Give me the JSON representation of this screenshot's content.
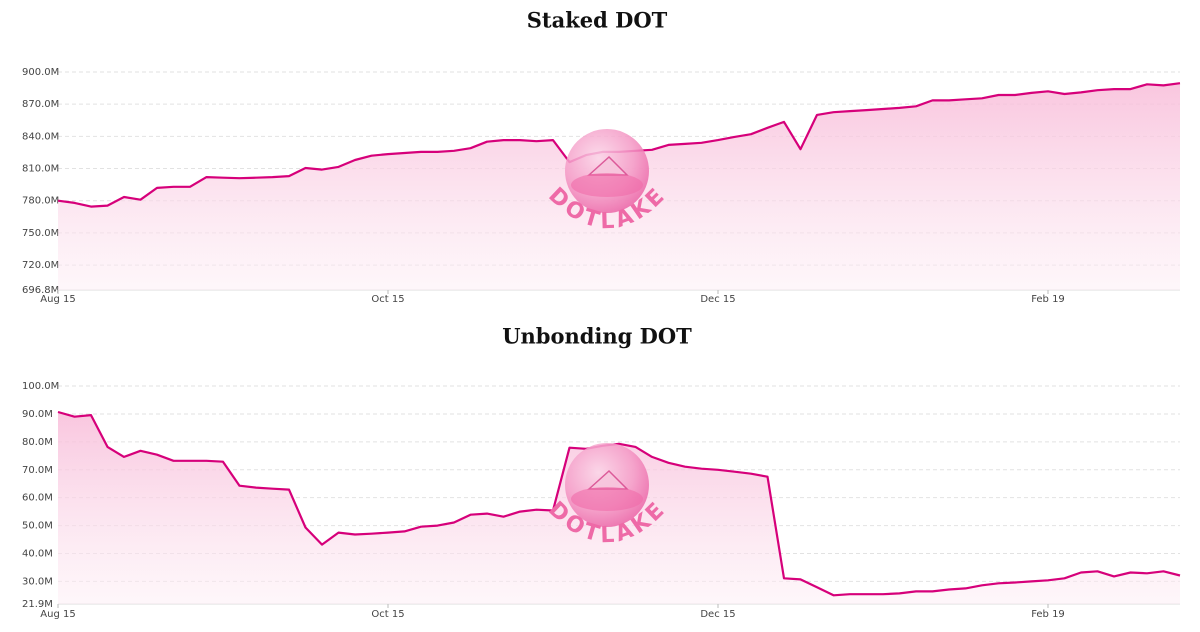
{
  "chart_data": [
    {
      "type": "area",
      "title": "Staked DOT",
      "watermark": "DOTLAKE",
      "color": "#d6007a",
      "categories": [
        "Aug 15",
        null,
        null,
        null,
        null,
        null,
        null,
        null,
        null,
        null,
        null,
        null,
        null,
        null,
        null,
        null,
        null,
        null,
        null,
        null,
        "Oct 15",
        null,
        null,
        null,
        null,
        null,
        null,
        null,
        null,
        null,
        null,
        null,
        null,
        null,
        null,
        null,
        null,
        null,
        null,
        null,
        "Dec 15",
        null,
        null,
        null,
        null,
        null,
        null,
        null,
        null,
        null,
        null,
        null,
        null,
        null,
        null,
        null,
        null,
        null,
        null,
        null,
        "Feb 19",
        null,
        null,
        null,
        null,
        null,
        null,
        null,
        null
      ],
      "values": [
        780000000.0,
        778000000.0,
        774500000.0,
        775500000.0,
        783500000.0,
        781000000.0,
        792000000.0,
        793000000.0,
        793000000.0,
        802000000.0,
        801500000.0,
        801000000.0,
        801500000.0,
        802000000.0,
        803000000.0,
        810500000.0,
        809000000.0,
        811500000.0,
        818000000.0,
        822000000.0,
        823500000.0,
        824500000.0,
        825500000.0,
        825500000.0,
        826500000.0,
        829000000.0,
        835000000.0,
        836500000.0,
        836500000.0,
        835500000.0,
        836500000.0,
        816000000.0,
        822500000.0,
        825500000.0,
        825500000.0,
        826500000.0,
        827500000.0,
        832000000.0,
        833000000.0,
        834000000.0,
        836500000.0,
        839500000.0,
        842000000.0,
        848000000.0,
        853500000.0,
        828000000.0,
        860000000.0,
        862500000.0,
        863500000.0,
        864500000.0,
        865500000.0,
        866500000.0,
        868000000.0,
        873500000.0,
        873500000.0,
        874500000.0,
        875500000.0,
        878500000.0,
        878500000.0,
        880500000.0,
        882000000.0,
        879500000.0,
        881000000.0,
        883000000.0,
        884000000.0,
        884000000.0,
        888500000.0,
        887500000.0,
        889500000.0
      ],
      "ylim": [
        696800000.0,
        909300000.0
      ],
      "yticks": [
        {
          "value": 696800000.0,
          "label": "696.8M"
        },
        {
          "value": 720000000.0,
          "label": "720.0M"
        },
        {
          "value": 750000000.0,
          "label": "750.0M"
        },
        {
          "value": 780000000.0,
          "label": "780.0M"
        },
        {
          "value": 810000000.0,
          "label": "810.0M"
        },
        {
          "value": 840000000.0,
          "label": "840.0M"
        },
        {
          "value": 870000000.0,
          "label": "870.0M"
        },
        {
          "value": 900000000.0,
          "label": "900.0M"
        }
      ],
      "grid": true
    },
    {
      "type": "area",
      "title": "Unbonding DOT",
      "watermark": "DOTLAKE",
      "color": "#d6007a",
      "categories": [
        "Aug 15",
        null,
        null,
        null,
        null,
        null,
        null,
        null,
        null,
        null,
        null,
        null,
        null,
        null,
        null,
        null,
        null,
        null,
        null,
        null,
        "Oct 15",
        null,
        null,
        null,
        null,
        null,
        null,
        null,
        null,
        null,
        null,
        null,
        null,
        null,
        null,
        null,
        null,
        null,
        null,
        null,
        "Dec 15",
        null,
        null,
        null,
        null,
        null,
        null,
        null,
        null,
        null,
        null,
        null,
        null,
        null,
        null,
        null,
        null,
        null,
        null,
        null,
        "Feb 19",
        null,
        null,
        null,
        null,
        null,
        null,
        null,
        null
      ],
      "values": [
        90700000.0,
        89000000.0,
        89600000.0,
        78200000.0,
        74600000.0,
        76800000.0,
        75400000.0,
        73200000.0,
        73200000.0,
        73200000.0,
        72900000.0,
        64300000.0,
        63600000.0,
        63200000.0,
        62900000.0,
        49300000.0,
        43200000.0,
        47500000.0,
        46800000.0,
        47100000.0,
        47500000.0,
        47900000.0,
        49600000.0,
        50000000.0,
        51100000.0,
        53900000.0,
        54300000.0,
        53200000.0,
        55000000.0,
        55700000.0,
        55400000.0,
        77900000.0,
        77500000.0,
        78600000.0,
        79300000.0,
        78200000.0,
        74600000.0,
        72500000.0,
        71100000.0,
        70400000.0,
        70000000.0,
        69300000.0,
        68600000.0,
        67500000.0,
        31100000.0,
        30700000.0,
        27900000.0,
        25000000.0,
        25400000.0,
        25400000.0,
        25400000.0,
        25700000.0,
        26400000.0,
        26400000.0,
        27100000.0,
        27500000.0,
        28600000.0,
        29300000.0,
        29600000.0,
        30000000.0,
        30400000.0,
        31100000.0,
        33200000.0,
        33600000.0,
        31800000.0,
        33200000.0,
        32900000.0,
        33600000.0,
        32100000.0
      ],
      "ylim": [
        21900000.0,
        103600000.0
      ],
      "yticks": [
        {
          "value": 21900000.0,
          "label": "21.9M"
        },
        {
          "value": 30000000.0,
          "label": "30.0M"
        },
        {
          "value": 40000000.0,
          "label": "40.0M"
        },
        {
          "value": 50000000.0,
          "label": "50.0M"
        },
        {
          "value": 60000000.0,
          "label": "60.0M"
        },
        {
          "value": 70000000.0,
          "label": "70.0M"
        },
        {
          "value": 80000000.0,
          "label": "80.0M"
        },
        {
          "value": 90000000.0,
          "label": "90.0M"
        },
        {
          "value": 100000000.0,
          "label": "100.0M"
        }
      ],
      "grid": true
    }
  ]
}
